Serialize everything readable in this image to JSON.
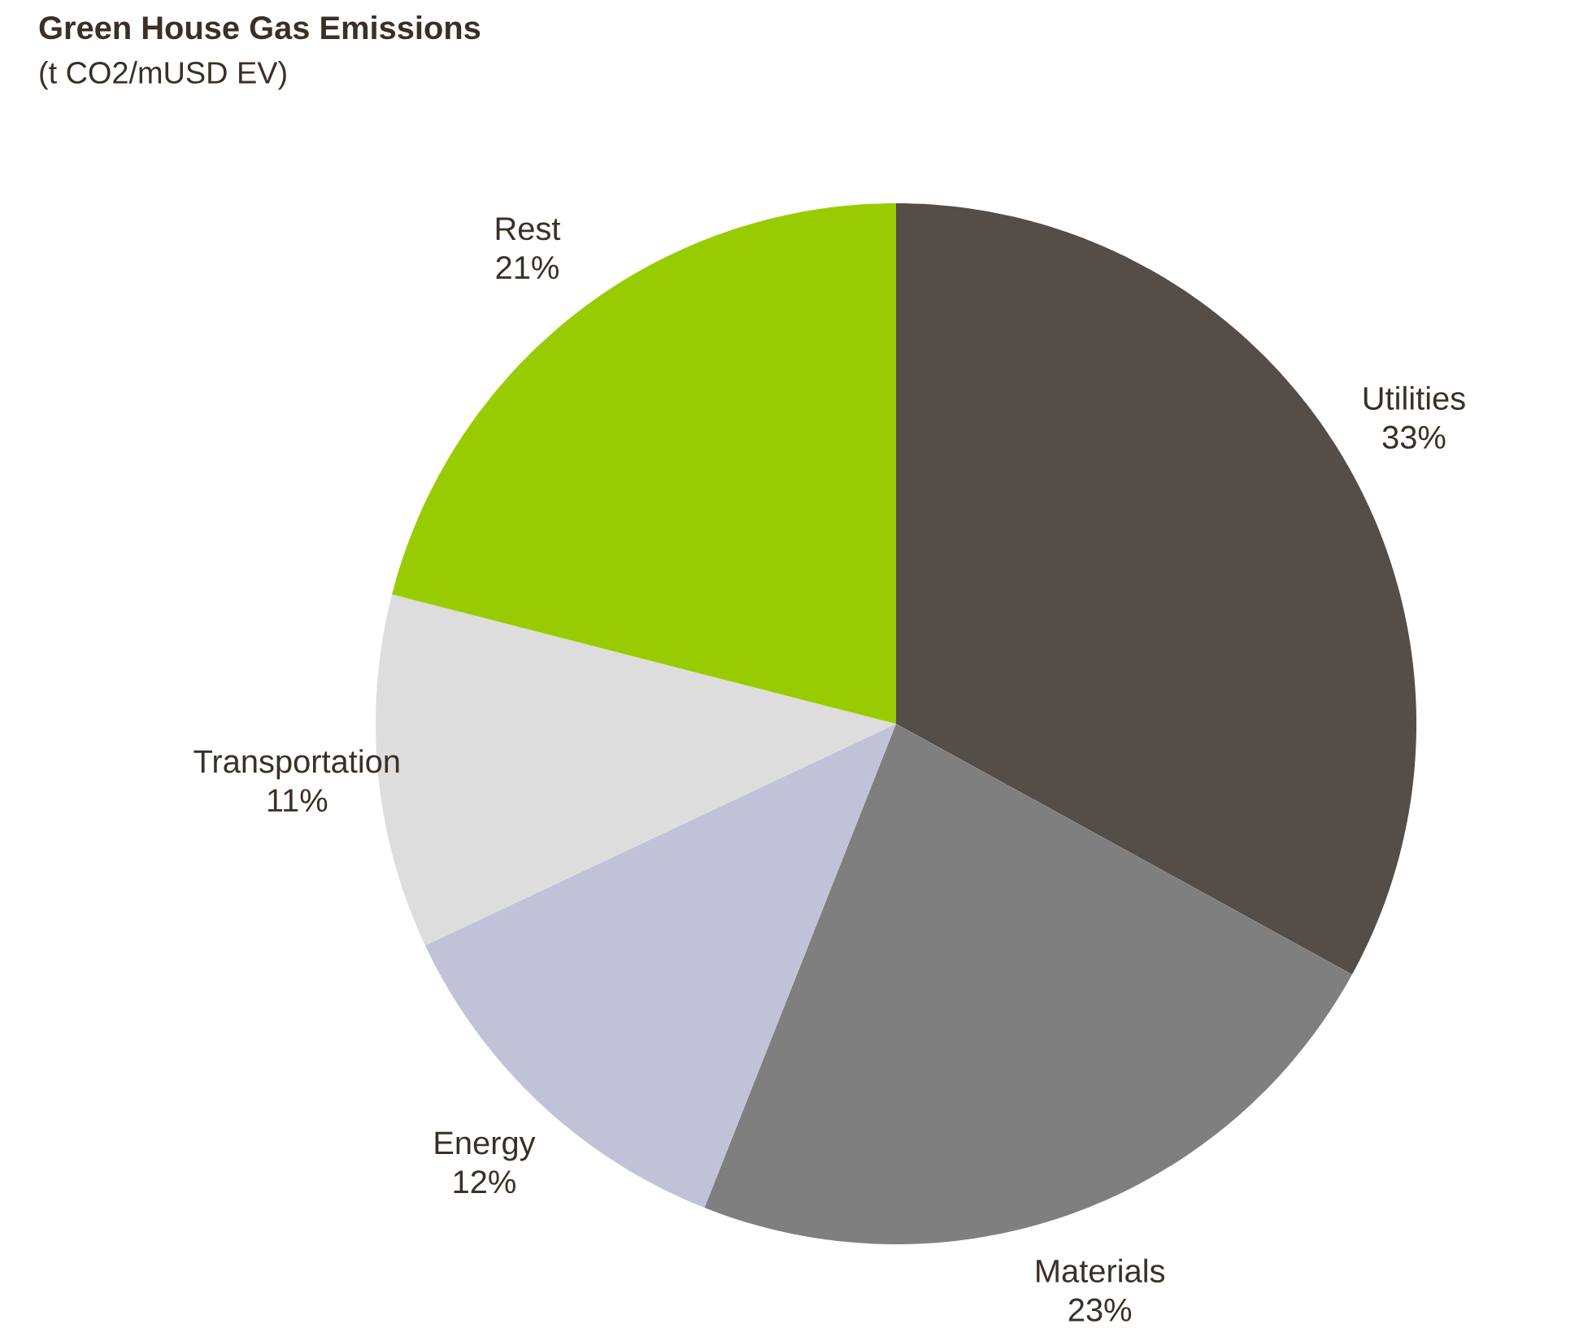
{
  "chart_data": {
    "type": "pie",
    "title": "Green House Gas Emissions",
    "subtitle": "(t CO2/mUSD EV)",
    "categories": [
      "Utilities",
      "Materials",
      "Energy",
      "Transportation",
      "Rest"
    ],
    "values": [
      33,
      23,
      12,
      11,
      21
    ],
    "colors": [
      "#554d48",
      "#7f7f7f",
      "#c0c3d8",
      "#dddddd",
      "#99cc00"
    ],
    "value_labels": [
      "33%",
      "23%",
      "12%",
      "11%",
      "21%"
    ]
  }
}
